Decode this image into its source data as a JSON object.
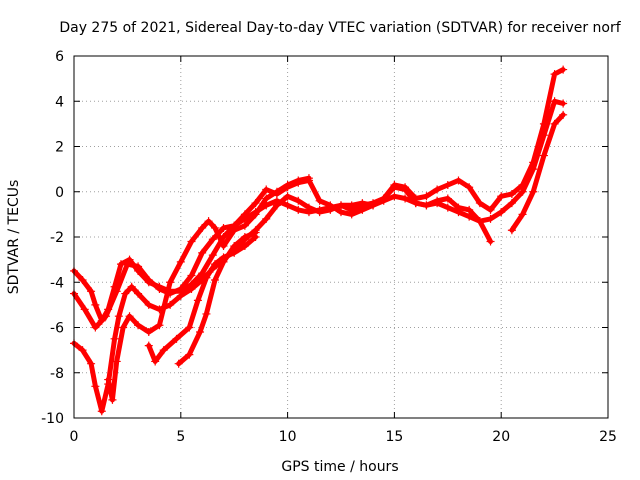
{
  "chart_data": {
    "type": "scatter",
    "title": "Day 275 of 2021, Sidereal Day-to-day VTEC variation (SDTVAR) for receiver norf",
    "xlabel": "GPS time / hours",
    "ylabel": "SDTVAR / TECUs",
    "xlim": [
      0,
      25
    ],
    "ylim": [
      -10,
      6
    ],
    "xticks": [
      "0",
      "5",
      "10",
      "15",
      "20",
      "25"
    ],
    "yticks": [
      "-10",
      "-8",
      "-6",
      "-4",
      "-2",
      "0",
      "2",
      "4",
      "6"
    ],
    "grid": true,
    "marker": "plus",
    "color": "#ff0000",
    "series": [
      {
        "x": [
          0.0,
          0.4,
          0.8,
          1.0,
          1.3,
          1.6,
          1.9,
          2.2,
          2.6,
          3.0,
          3.5,
          4.0,
          4.5,
          5.0,
          5.5,
          6.0,
          6.5,
          7.0,
          7.5,
          8.0,
          8.5,
          9.0,
          9.5,
          10.0,
          10.5,
          11.0,
          11.5,
          12.0,
          12.5,
          13.0,
          13.5,
          14.0,
          14.5,
          15.0,
          15.5,
          16.0,
          16.5,
          17.0,
          17.5,
          18.0,
          18.5,
          19.0,
          19.5,
          20.0,
          20.5,
          21.0,
          21.5,
          22.0,
          22.5,
          22.9
        ],
        "y": [
          -3.5,
          -3.9,
          -4.4,
          -5.0,
          -5.7,
          -5.2,
          -4.2,
          -3.2,
          -3.0,
          -3.5,
          -4.0,
          -4.2,
          -4.4,
          -4.4,
          -4.1,
          -3.6,
          -2.8,
          -2.0,
          -1.5,
          -1.2,
          -0.9,
          -0.6,
          -0.4,
          -0.6,
          -0.8,
          -0.9,
          -0.8,
          -0.7,
          -0.6,
          -0.6,
          -0.5,
          -0.6,
          -0.4,
          -0.2,
          -0.3,
          -0.5,
          -0.6,
          -0.5,
          -0.7,
          -0.9,
          -1.1,
          -1.3,
          -1.2,
          -0.9,
          -0.5,
          0.0,
          1.0,
          2.5,
          4.0,
          3.9
        ]
      },
      {
        "x": [
          0.0,
          0.5,
          1.0,
          1.5,
          2.0,
          2.5,
          3.0,
          3.5,
          4.0,
          4.5,
          5.0,
          5.5,
          6.0,
          6.5,
          7.0,
          7.5,
          8.0,
          8.5,
          9.0,
          9.5,
          10.0,
          10.5,
          11.0,
          11.5,
          12.0,
          12.5,
          13.0,
          13.5,
          14.0,
          14.5,
          15.0,
          15.5,
          16.0,
          16.5,
          17.0,
          17.5,
          18.0,
          18.5,
          19.0,
          19.5,
          20.0,
          20.5,
          21.0,
          21.5,
          22.0,
          22.5,
          22.9
        ],
        "y": [
          -4.5,
          -5.2,
          -6.0,
          -5.5,
          -4.4,
          -3.2,
          -3.3,
          -3.9,
          -4.3,
          -4.5,
          -4.3,
          -3.7,
          -2.7,
          -2.1,
          -1.6,
          -1.5,
          -1.0,
          -0.5,
          0.1,
          -0.1,
          0.2,
          0.4,
          0.5,
          -0.4,
          -0.6,
          -0.9,
          -1.0,
          -0.8,
          -0.6,
          -0.3,
          0.3,
          0.2,
          -0.3,
          -0.2,
          0.1,
          0.3,
          0.5,
          0.2,
          -0.5,
          -0.8,
          -0.2,
          -0.1,
          0.3,
          1.3,
          3.0,
          5.2,
          5.4
        ]
      },
      {
        "x": [
          0.0,
          0.4,
          0.8,
          1.0,
          1.3,
          1.6,
          1.9,
          2.1,
          2.4,
          2.7,
          3.0,
          3.5,
          4.0,
          4.5,
          5.0,
          5.5,
          6.0,
          6.5,
          7.0,
          7.5,
          8.0,
          8.5,
          9.0,
          9.5,
          10.0,
          10.5,
          11.0,
          11.5,
          12.0,
          12.5,
          13.0,
          13.5,
          14.0,
          14.5,
          15.0,
          15.5,
          16.0,
          16.5,
          17.0,
          17.5,
          18.0,
          18.5,
          19.0,
          19.5,
          20.0,
          20.5,
          21.0,
          21.5,
          22.0,
          22.5,
          22.9
        ],
        "y": [
          -6.7,
          -7.0,
          -7.6,
          -8.6,
          -9.7,
          -8.5,
          -6.5,
          -5.5,
          -4.5,
          -4.2,
          -4.5,
          -5.0,
          -5.2,
          -5.0,
          -4.6,
          -4.3,
          -3.9,
          -3.4,
          -3.0,
          -2.6,
          -2.1,
          -1.7,
          -1.2,
          -0.6,
          -0.2,
          -0.4,
          -0.7,
          -0.9,
          -0.8,
          -0.6,
          -0.8,
          -0.6,
          -0.5,
          -0.3,
          0.2,
          0.1,
          -0.5,
          -0.6,
          -0.4,
          -0.3,
          -0.7,
          -0.8,
          -1.3,
          -2.2,
          null,
          -1.7,
          -1.0,
          0.0,
          1.6,
          3.0,
          3.4
        ]
      },
      {
        "x": [
          1.6,
          1.8,
          2.0,
          2.3,
          2.6,
          3.0,
          3.5,
          4.0,
          4.5,
          5.0,
          5.5,
          6.0,
          6.3,
          6.6,
          7.0,
          7.5,
          8.0,
          8.5,
          9.0,
          9.5,
          10.0,
          10.5,
          11.0
        ],
        "y": [
          -8.3,
          -9.2,
          -7.5,
          -6.0,
          -5.5,
          -5.9,
          -6.2,
          -5.9,
          -4.0,
          -3.1,
          -2.2,
          -1.6,
          -1.3,
          -1.6,
          -2.4,
          -1.7,
          -1.5,
          -1.0,
          -0.3,
          0.0,
          0.3,
          0.5,
          0.6
        ]
      },
      {
        "x": [
          3.5,
          3.8,
          4.2,
          4.8,
          5.4,
          5.8,
          6.2,
          6.6,
          7.0,
          7.5,
          8.0,
          8.5
        ],
        "y": [
          -6.8,
          -7.5,
          -7.0,
          -6.5,
          -6.0,
          -4.8,
          -3.8,
          -3.2,
          -2.9,
          -2.7,
          -2.4,
          -2.0
        ]
      },
      {
        "x": [
          4.9,
          5.4,
          5.9,
          6.2,
          6.6,
          7.0,
          7.5,
          8.0,
          8.5
        ],
        "y": [
          -7.6,
          -7.2,
          -6.2,
          -5.4,
          -3.9,
          -3.1,
          -2.4,
          -2.0,
          -1.8
        ]
      }
    ]
  }
}
